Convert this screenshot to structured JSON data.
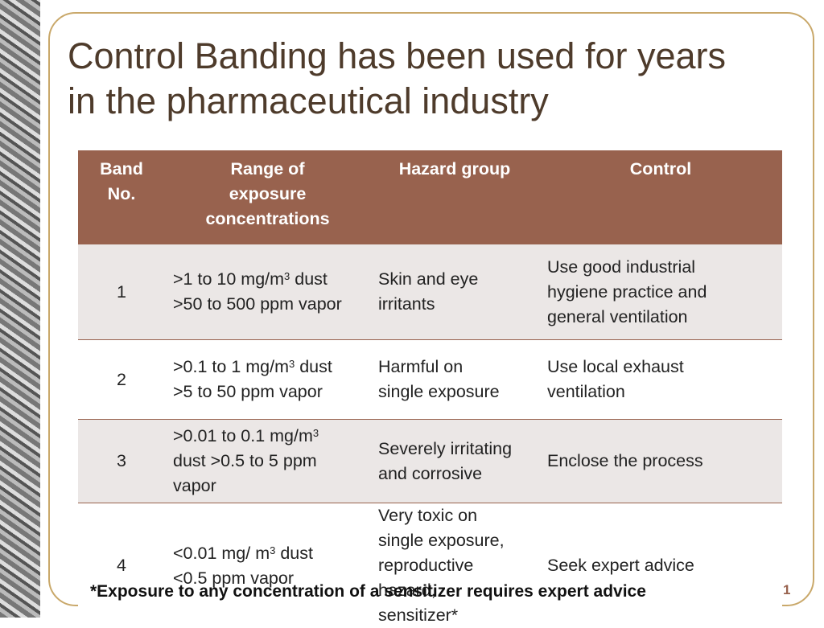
{
  "slide": {
    "title": [
      "Control Banding has been used for years",
      "in the pharmaceutical industry"
    ],
    "table": {
      "header": [
        [
          "Band",
          "No."
        ],
        [
          "Range of",
          "exposure",
          "concentrations"
        ],
        [
          "Hazard group"
        ],
        [
          "Control"
        ]
      ],
      "rows": [
        [
          [
            "1"
          ],
          [
            {
              "before": ">1 to 10 mg/m",
              "sup": "3",
              "after": " dust"
            },
            ">50 to 500 ppm vapor"
          ],
          [
            "Skin and eye",
            "irritants"
          ],
          [
            "Use good industrial",
            "hygiene practice and",
            "general ventilation"
          ]
        ],
        [
          [
            "2"
          ],
          [
            {
              "before": ">0.1 to 1 mg/m",
              "sup": "3",
              "after": " dust"
            },
            ">5 to 50 ppm vapor"
          ],
          [
            "Harmful on",
            "single exposure"
          ],
          [
            "Use local exhaust",
            "ventilation"
          ]
        ],
        [
          [
            "3"
          ],
          [
            {
              "before": ">0.01 to 0.1 mg/m",
              "sup": "3",
              "after": ""
            },
            "dust >0.5 to 5 ppm",
            "vapor"
          ],
          [
            "Severely irritating",
            "and corrosive"
          ],
          [
            "Enclose the process"
          ]
        ],
        [
          [
            "4"
          ],
          [
            {
              "before": "<0.01 mg/ m",
              "sup": "3",
              "after": " dust"
            },
            "<0.5 ppm vapor"
          ],
          [
            "Very toxic on",
            "single exposure,",
            "reproductive",
            "hazard,",
            "sensitizer*"
          ],
          [
            "Seek expert advice"
          ]
        ]
      ]
    },
    "footnote": "*Exposure to any concentration of a sensitizer requires expert advice",
    "page_number": "1"
  }
}
